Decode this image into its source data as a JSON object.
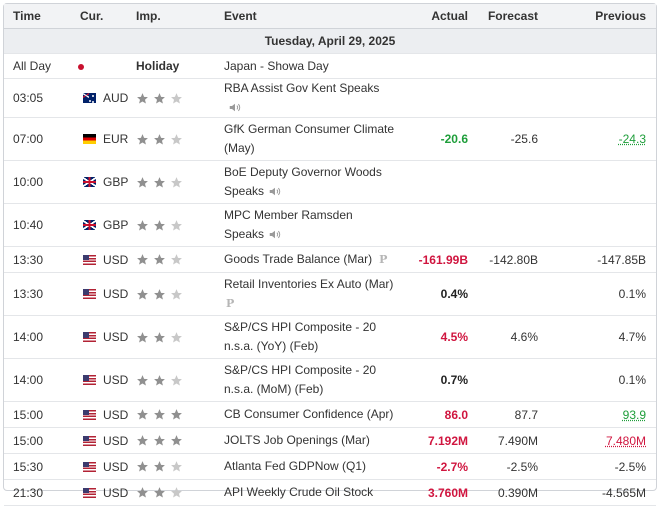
{
  "headers": {
    "time": "Time",
    "currency": "Cur.",
    "importance": "Imp.",
    "event": "Event",
    "actual": "Actual",
    "forecast": "Forecast",
    "previous": "Previous"
  },
  "date_label": "Tuesday, April 29, 2025",
  "colors": {
    "positive": "#1e9e3a",
    "negative": "#d0153f",
    "star_active": "#909090",
    "star_inactive": "#c8c8c8"
  },
  "events": [
    {
      "time": "All Day",
      "flag": "jp",
      "currency": "",
      "holiday": "Holiday",
      "event": "Japan - Showa Day",
      "actual": "",
      "forecast": "",
      "previous": ""
    },
    {
      "time": "03:05",
      "flag": "au",
      "currency": "AUD",
      "stars": 2,
      "event": "RBA Assist Gov Kent Speaks",
      "speaker": true,
      "actual": "",
      "forecast": "",
      "previous": ""
    },
    {
      "time": "07:00",
      "flag": "de",
      "currency": "EUR",
      "stars": 2,
      "event": "GfK German Consumer Climate (May)",
      "actual": "-20.6",
      "actual_class": "pos",
      "forecast": "-25.6",
      "previous": "-24.3",
      "previous_class": "prev-pos"
    },
    {
      "time": "10:00",
      "flag": "gb",
      "currency": "GBP",
      "stars": 2,
      "event": "BoE Deputy Governor Woods Speaks",
      "speaker": true,
      "actual": "",
      "forecast": "",
      "previous": ""
    },
    {
      "time": "10:40",
      "flag": "gb",
      "currency": "GBP",
      "stars": 2,
      "event": "MPC Member Ramsden Speaks",
      "speaker": true,
      "actual": "",
      "forecast": "",
      "previous": ""
    },
    {
      "time": "13:30",
      "flag": "us",
      "currency": "USD",
      "stars": 2,
      "event": "Goods Trade Balance (Mar)",
      "prelim": "P",
      "actual": "-161.99B",
      "actual_class": "neg",
      "forecast": "-142.80B",
      "previous": "-147.85B"
    },
    {
      "time": "13:30",
      "flag": "us",
      "currency": "USD",
      "stars": 2,
      "event": "Retail Inventories Ex Auto (Mar)",
      "prelim": "P",
      "actual": "0.4%",
      "actual_class": "neu",
      "forecast": "",
      "previous": "0.1%"
    },
    {
      "time": "14:00",
      "flag": "us",
      "currency": "USD",
      "stars": 2,
      "event": "S&P/CS HPI Composite - 20 n.s.a. (YoY) (Feb)",
      "actual": "4.5%",
      "actual_class": "neg",
      "forecast": "4.6%",
      "previous": "4.7%"
    },
    {
      "time": "14:00",
      "flag": "us",
      "currency": "USD",
      "stars": 2,
      "event": "S&P/CS HPI Composite - 20 n.s.a. (MoM) (Feb)",
      "actual": "0.7%",
      "actual_class": "neu",
      "forecast": "",
      "previous": "0.1%"
    },
    {
      "time": "15:00",
      "flag": "us",
      "currency": "USD",
      "stars": 3,
      "event": "CB Consumer Confidence (Apr)",
      "actual": "86.0",
      "actual_class": "neg",
      "forecast": "87.7",
      "previous": "93.9",
      "previous_class": "prev-pos"
    },
    {
      "time": "15:00",
      "flag": "us",
      "currency": "USD",
      "stars": 3,
      "event": "JOLTS Job Openings (Mar)",
      "actual": "7.192M",
      "actual_class": "neg",
      "forecast": "7.490M",
      "previous": "7.480M",
      "previous_class": "prev-neg"
    },
    {
      "time": "15:30",
      "flag": "us",
      "currency": "USD",
      "stars": 2,
      "event": "Atlanta Fed GDPNow (Q1)",
      "actual": "-2.7%",
      "actual_class": "neg",
      "forecast": "-2.5%",
      "previous": "-2.5%"
    },
    {
      "time": "21:30",
      "flag": "us",
      "currency": "USD",
      "stars": 2,
      "event": "API Weekly Crude Oil Stock",
      "actual": "3.760M",
      "actual_class": "neg",
      "forecast": "0.390M",
      "previous": "-4.565M"
    }
  ]
}
